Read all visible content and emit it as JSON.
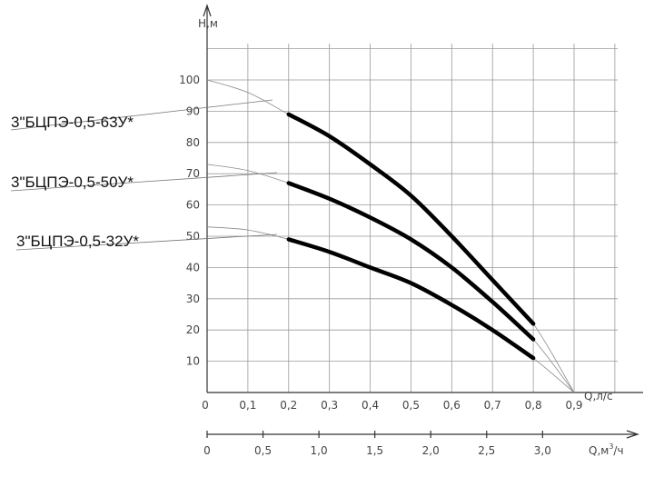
{
  "chart_data": {
    "type": "line",
    "ylabel": "Н,м",
    "xlabel": "Q,л/с",
    "x2label_main": "Q,м",
    "x2label_sup": "3",
    "x2label_tail": "/ч",
    "x_ticks": [
      "0",
      "0,1",
      "0,2",
      "0,3",
      "0,4",
      "0,5",
      "0,6",
      "0,7",
      "0,8",
      "0,9"
    ],
    "x_tick_values": [
      0,
      0.1,
      0.2,
      0.3,
      0.4,
      0.5,
      0.6,
      0.7,
      0.8,
      0.9
    ],
    "x2_ticks": [
      "0",
      "0,5",
      "1,0",
      "1,5",
      "2,0",
      "2,5",
      "3,0"
    ],
    "x2_tick_values": [
      0,
      0.5,
      1.0,
      1.5,
      2.0,
      2.5,
      3.0
    ],
    "y_ticks": [
      "10",
      "20",
      "30",
      "40",
      "50",
      "60",
      "70",
      "80",
      "90",
      "100"
    ],
    "y_tick_values": [
      10,
      20,
      30,
      40,
      50,
      60,
      70,
      80,
      90,
      100
    ],
    "xlim": [
      0,
      0.9
    ],
    "ylim": [
      0,
      110
    ],
    "grid": true,
    "series": [
      {
        "name": "3\"БЦПЭ-0,5-63У*",
        "x": [
          0.2,
          0.3,
          0.4,
          0.5,
          0.6,
          0.7,
          0.8
        ],
        "y": [
          89,
          82,
          73,
          63,
          50,
          36,
          22
        ],
        "full_curve_x": [
          0,
          0.1,
          0.2,
          0.3,
          0.4,
          0.5,
          0.6,
          0.7,
          0.8,
          0.9
        ],
        "full_curve_y": [
          100,
          96,
          89,
          82,
          73,
          63,
          50,
          36,
          22,
          0
        ]
      },
      {
        "name": "3\"БЦПЭ-0,5-50У*",
        "x": [
          0.2,
          0.3,
          0.4,
          0.5,
          0.6,
          0.7,
          0.8
        ],
        "y": [
          67,
          62,
          56,
          49,
          40,
          29,
          17
        ],
        "full_curve_x": [
          0,
          0.1,
          0.2,
          0.3,
          0.4,
          0.5,
          0.6,
          0.7,
          0.8,
          0.9
        ],
        "full_curve_y": [
          73,
          71,
          67,
          62,
          56,
          49,
          40,
          29,
          17,
          0
        ]
      },
      {
        "name": "3\"БЦПЭ-0,5-32У*",
        "x": [
          0.2,
          0.3,
          0.4,
          0.5,
          0.6,
          0.7,
          0.8
        ],
        "y": [
          49,
          45,
          40,
          35,
          28,
          20,
          11
        ],
        "full_curve_x": [
          0,
          0.1,
          0.2,
          0.3,
          0.4,
          0.5,
          0.6,
          0.7,
          0.8,
          0.9
        ],
        "full_curve_y": [
          53,
          52,
          49,
          45,
          40,
          35,
          28,
          20,
          11,
          0
        ]
      }
    ]
  }
}
